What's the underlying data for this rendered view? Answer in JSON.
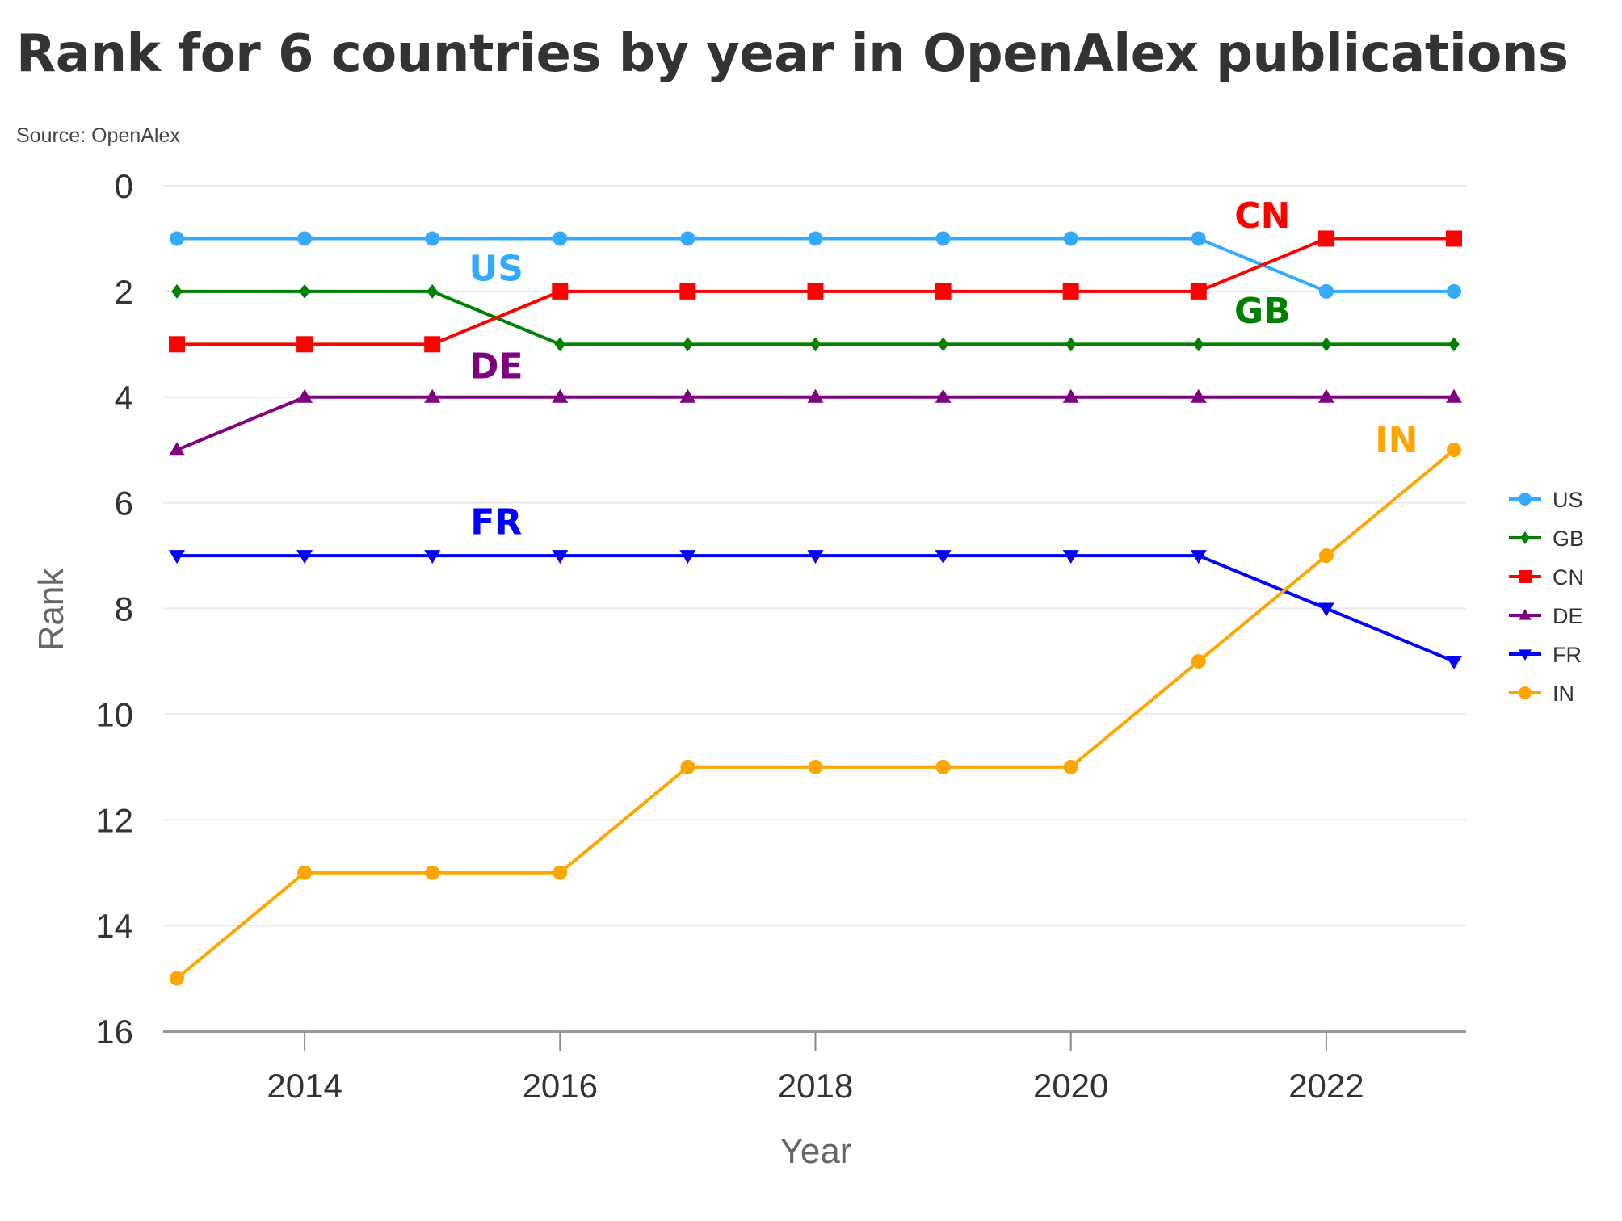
{
  "chart_data": {
    "type": "line",
    "title": "Rank for 6 countries by year in OpenAlex publications",
    "subtitle": "Source: OpenAlex",
    "xlabel": "Year",
    "ylabel": "Rank",
    "x": [
      2013,
      2014,
      2015,
      2016,
      2017,
      2018,
      2019,
      2020,
      2021,
      2022,
      2023
    ],
    "xlim": [
      2012.9,
      2023.1
    ],
    "xticks": [
      2014,
      2016,
      2018,
      2020,
      2022
    ],
    "xtick_labels": [
      "2014",
      "2016",
      "2018",
      "2020",
      "2022"
    ],
    "ylim": [
      0,
      16
    ],
    "y_inverted": true,
    "yticks": [
      0,
      2,
      4,
      6,
      8,
      10,
      12,
      14,
      16
    ],
    "ytick_labels": [
      "0",
      "2",
      "4",
      "6",
      "8",
      "10",
      "12",
      "14",
      "16"
    ],
    "grid": "horizontal",
    "legend_position": "right",
    "series": [
      {
        "name": "US",
        "color": "#33aaff",
        "marker": "circle",
        "values": [
          1,
          1,
          1,
          1,
          1,
          1,
          1,
          1,
          1,
          2,
          2
        ],
        "annotation": {
          "text": "US",
          "x": 2015.5,
          "y": 1.55
        }
      },
      {
        "name": "GB",
        "color": "#008000",
        "marker": "diamond",
        "values": [
          2,
          2,
          2,
          3,
          3,
          3,
          3,
          3,
          3,
          3,
          3
        ],
        "annotation": {
          "text": "GB",
          "x": 2021.5,
          "y": 2.35
        }
      },
      {
        "name": "CN",
        "color": "#ff0000",
        "marker": "square",
        "values": [
          3,
          3,
          3,
          2,
          2,
          2,
          2,
          2,
          2,
          1,
          1
        ],
        "annotation": {
          "text": "CN",
          "x": 2021.5,
          "y": 0.55
        }
      },
      {
        "name": "DE",
        "color": "#800080",
        "marker": "triangle-up",
        "values": [
          5,
          4,
          4,
          4,
          4,
          4,
          4,
          4,
          4,
          4,
          4
        ],
        "annotation": {
          "text": "DE",
          "x": 2015.5,
          "y": 3.4
        }
      },
      {
        "name": "FR",
        "color": "#0000ff",
        "marker": "triangle-down",
        "values": [
          7,
          7,
          7,
          7,
          7,
          7,
          7,
          7,
          7,
          8,
          9
        ],
        "annotation": {
          "text": "FR",
          "x": 2015.5,
          "y": 6.35
        }
      },
      {
        "name": "IN",
        "color": "#ffa500",
        "marker": "circle",
        "values": [
          15,
          13,
          13,
          13,
          11,
          11,
          11,
          11,
          9,
          7,
          5
        ],
        "annotation": {
          "text": "IN",
          "x": 2022.55,
          "y": 4.8
        }
      }
    ]
  }
}
